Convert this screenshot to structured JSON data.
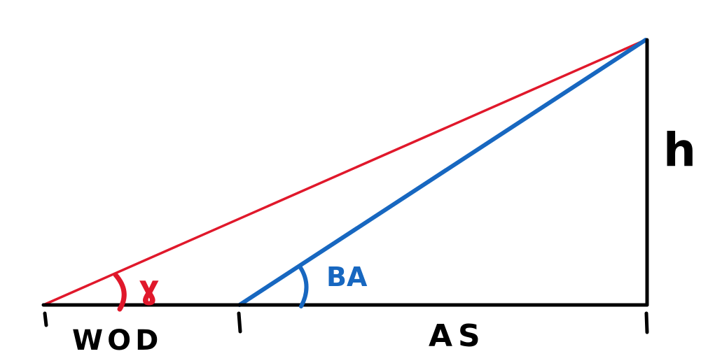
{
  "labels": {
    "height": "h",
    "blue_angle": "BA",
    "red_angle": "ɣ",
    "left_segment": "WOD",
    "right_segment": "AS"
  },
  "colors": {
    "red": "#e0182b",
    "blue": "#1767c0",
    "black": "#000000"
  }
}
